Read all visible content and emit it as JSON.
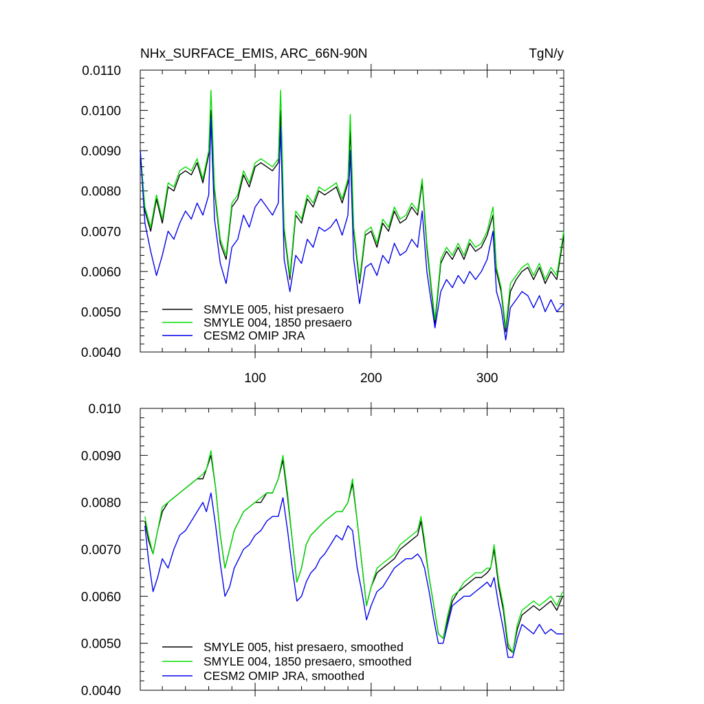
{
  "title": "NHx_SURFACE_EMIS, ARC_66N-90N",
  "units": "TgN/y",
  "colors": {
    "black": "#000000",
    "green": "#00dd00",
    "blue": "#0000ee"
  },
  "chart_data": [
    {
      "type": "line",
      "xlim": [
        1,
        366
      ],
      "ylim": [
        0.004,
        0.011
      ],
      "yticks": [
        "0.0040",
        "0.0050",
        "0.0060",
        "0.0070",
        "0.0080",
        "0.0090",
        "0.0100",
        "0.0110"
      ],
      "xticks": [
        "100",
        "200",
        "300"
      ],
      "legend": "bottom-left",
      "series": [
        {
          "name": "SMYLE 005, hist presaero",
          "color": "black",
          "x": [
            1,
            5,
            10,
            15,
            20,
            25,
            30,
            35,
            40,
            45,
            50,
            55,
            60,
            62,
            65,
            70,
            75,
            80,
            85,
            90,
            95,
            100,
            105,
            110,
            115,
            120,
            122,
            125,
            130,
            135,
            140,
            145,
            150,
            155,
            160,
            165,
            170,
            175,
            180,
            182,
            185,
            190,
            195,
            200,
            205,
            210,
            215,
            220,
            225,
            230,
            235,
            240,
            244,
            248,
            252,
            255,
            260,
            265,
            270,
            275,
            280,
            285,
            290,
            295,
            300,
            305,
            308,
            312,
            316,
            320,
            325,
            330,
            335,
            340,
            345,
            350,
            355,
            360,
            366
          ],
          "y": [
            0.009,
            0.0075,
            0.007,
            0.0078,
            0.0072,
            0.0081,
            0.008,
            0.0084,
            0.0085,
            0.0084,
            0.0087,
            0.0082,
            0.0089,
            0.01,
            0.008,
            0.0067,
            0.0063,
            0.0076,
            0.0078,
            0.0084,
            0.0081,
            0.0086,
            0.0087,
            0.0086,
            0.0085,
            0.0087,
            0.01,
            0.007,
            0.0058,
            0.0074,
            0.0072,
            0.0078,
            0.0076,
            0.008,
            0.0079,
            0.008,
            0.0081,
            0.0077,
            0.0082,
            0.0095,
            0.007,
            0.0057,
            0.0069,
            0.007,
            0.0066,
            0.0072,
            0.007,
            0.0075,
            0.0072,
            0.0073,
            0.0076,
            0.0074,
            0.0082,
            0.0066,
            0.0055,
            0.0047,
            0.0062,
            0.0065,
            0.0063,
            0.0066,
            0.0063,
            0.0067,
            0.0065,
            0.0066,
            0.0069,
            0.0074,
            0.006,
            0.0055,
            0.0045,
            0.0055,
            0.0058,
            0.006,
            0.0061,
            0.0058,
            0.0061,
            0.0057,
            0.006,
            0.0058,
            0.0069
          ]
        },
        {
          "name": "SMYLE 004, 1850 presaero",
          "color": "green",
          "x": [
            1,
            5,
            10,
            15,
            20,
            25,
            30,
            35,
            40,
            45,
            50,
            55,
            60,
            62,
            65,
            70,
            75,
            80,
            85,
            90,
            95,
            100,
            105,
            110,
            115,
            120,
            122,
            125,
            130,
            135,
            140,
            145,
            150,
            155,
            160,
            165,
            170,
            175,
            180,
            182,
            185,
            190,
            195,
            200,
            205,
            210,
            215,
            220,
            225,
            230,
            235,
            240,
            244,
            248,
            252,
            255,
            260,
            265,
            270,
            275,
            280,
            285,
            290,
            295,
            300,
            305,
            308,
            312,
            316,
            320,
            325,
            330,
            335,
            340,
            345,
            350,
            355,
            360,
            366
          ],
          "y": [
            0.009,
            0.0076,
            0.0071,
            0.0079,
            0.0073,
            0.0082,
            0.0081,
            0.0085,
            0.0086,
            0.0085,
            0.0088,
            0.0083,
            0.009,
            0.0105,
            0.0081,
            0.0068,
            0.0064,
            0.0077,
            0.0079,
            0.0085,
            0.0082,
            0.0087,
            0.0088,
            0.0087,
            0.0086,
            0.0088,
            0.0105,
            0.0071,
            0.0059,
            0.0075,
            0.0073,
            0.0079,
            0.0077,
            0.0081,
            0.008,
            0.0081,
            0.0082,
            0.0078,
            0.0083,
            0.0099,
            0.0071,
            0.0058,
            0.007,
            0.0071,
            0.0067,
            0.0073,
            0.0071,
            0.0076,
            0.0073,
            0.0074,
            0.0077,
            0.0075,
            0.0083,
            0.0067,
            0.0056,
            0.0048,
            0.0063,
            0.0066,
            0.0064,
            0.0067,
            0.0064,
            0.0068,
            0.0066,
            0.0067,
            0.007,
            0.0076,
            0.0061,
            0.0056,
            0.0046,
            0.0057,
            0.0059,
            0.0061,
            0.0062,
            0.0059,
            0.0062,
            0.0058,
            0.0061,
            0.0059,
            0.007
          ]
        },
        {
          "name": "CESM2 OMIP JRA",
          "color": "blue",
          "x": [
            1,
            5,
            10,
            15,
            20,
            25,
            30,
            35,
            40,
            45,
            50,
            55,
            60,
            62,
            65,
            70,
            75,
            80,
            85,
            90,
            95,
            100,
            105,
            110,
            115,
            120,
            122,
            125,
            130,
            135,
            140,
            145,
            150,
            155,
            160,
            165,
            170,
            175,
            180,
            182,
            185,
            190,
            195,
            200,
            205,
            210,
            215,
            220,
            225,
            230,
            235,
            240,
            244,
            248,
            252,
            255,
            260,
            265,
            270,
            275,
            280,
            285,
            290,
            295,
            300,
            305,
            308,
            312,
            316,
            320,
            325,
            330,
            335,
            340,
            345,
            350,
            355,
            360,
            366
          ],
          "y": [
            0.009,
            0.0072,
            0.0065,
            0.0059,
            0.0064,
            0.007,
            0.0068,
            0.0072,
            0.0075,
            0.0073,
            0.0077,
            0.0074,
            0.0079,
            0.0098,
            0.0073,
            0.0062,
            0.0057,
            0.0066,
            0.0068,
            0.0074,
            0.0071,
            0.0076,
            0.0078,
            0.0076,
            0.0074,
            0.0077,
            0.0096,
            0.0063,
            0.0055,
            0.0064,
            0.0062,
            0.0068,
            0.0066,
            0.0071,
            0.007,
            0.0071,
            0.0073,
            0.0069,
            0.0074,
            0.009,
            0.0063,
            0.0052,
            0.0061,
            0.0062,
            0.0059,
            0.0064,
            0.0062,
            0.0067,
            0.0064,
            0.0065,
            0.0068,
            0.0066,
            0.0075,
            0.006,
            0.0052,
            0.0046,
            0.0055,
            0.0058,
            0.0056,
            0.0059,
            0.0057,
            0.006,
            0.0058,
            0.006,
            0.0063,
            0.007,
            0.0055,
            0.0051,
            0.0043,
            0.0051,
            0.0053,
            0.0055,
            0.0054,
            0.0051,
            0.0054,
            0.005,
            0.0053,
            0.005,
            0.0052
          ]
        }
      ]
    },
    {
      "type": "line",
      "xlim": [
        1,
        366
      ],
      "ylim": [
        0.004,
        0.01
      ],
      "yticks": [
        "0.0040",
        "0.0050",
        "0.0060",
        "0.0070",
        "0.0080",
        "0.0090",
        "0.010"
      ],
      "xticks": [],
      "legend": "bottom-left",
      "series": [
        {
          "name": "SMYLE 005, hist presaero, smoothed",
          "color": "black",
          "x": [
            5,
            8,
            12,
            16,
            20,
            25,
            30,
            35,
            40,
            45,
            50,
            55,
            58,
            62,
            66,
            70,
            74,
            78,
            82,
            86,
            90,
            95,
            100,
            105,
            110,
            115,
            120,
            124,
            128,
            132,
            136,
            140,
            144,
            148,
            152,
            156,
            160,
            165,
            170,
            175,
            180,
            184,
            188,
            192,
            196,
            200,
            205,
            210,
            215,
            220,
            225,
            230,
            235,
            240,
            243,
            246,
            250,
            254,
            258,
            262,
            266,
            270,
            275,
            280,
            285,
            290,
            295,
            300,
            303,
            306,
            310,
            314,
            318,
            322,
            326,
            330,
            335,
            340,
            345,
            350,
            355,
            360,
            365
          ],
          "y": [
            0.0076,
            0.0072,
            0.0069,
            0.0074,
            0.0078,
            0.008,
            0.0081,
            0.0082,
            0.0083,
            0.0084,
            0.0085,
            0.0085,
            0.0087,
            0.009,
            0.0083,
            0.0073,
            0.0066,
            0.007,
            0.0074,
            0.0076,
            0.0078,
            0.0079,
            0.008,
            0.008,
            0.0082,
            0.0082,
            0.0085,
            0.0089,
            0.0081,
            0.0072,
            0.0063,
            0.0066,
            0.0071,
            0.0073,
            0.0074,
            0.0075,
            0.0076,
            0.0077,
            0.0078,
            0.0078,
            0.008,
            0.0084,
            0.0076,
            0.0067,
            0.0058,
            0.0062,
            0.0065,
            0.0066,
            0.0067,
            0.0068,
            0.007,
            0.0071,
            0.0072,
            0.0073,
            0.0076,
            0.0071,
            0.0064,
            0.0058,
            0.0052,
            0.0051,
            0.0055,
            0.0059,
            0.0061,
            0.0062,
            0.0063,
            0.0064,
            0.0064,
            0.0065,
            0.0066,
            0.007,
            0.0062,
            0.0057,
            0.0049,
            0.0048,
            0.0053,
            0.0056,
            0.0057,
            0.0058,
            0.0057,
            0.0058,
            0.0059,
            0.0057,
            0.006
          ]
        },
        {
          "name": "SMYLE 004, 1850 presaero, smoothed",
          "color": "green",
          "x": [
            5,
            8,
            12,
            16,
            20,
            25,
            30,
            35,
            40,
            45,
            50,
            55,
            58,
            62,
            66,
            70,
            74,
            78,
            82,
            86,
            90,
            95,
            100,
            105,
            110,
            115,
            120,
            124,
            128,
            132,
            136,
            140,
            144,
            148,
            152,
            156,
            160,
            165,
            170,
            175,
            180,
            184,
            188,
            192,
            196,
            200,
            205,
            210,
            215,
            220,
            225,
            230,
            235,
            240,
            243,
            246,
            250,
            254,
            258,
            262,
            266,
            270,
            275,
            280,
            285,
            290,
            295,
            300,
            303,
            306,
            310,
            314,
            318,
            322,
            326,
            330,
            335,
            340,
            345,
            350,
            355,
            360,
            365
          ],
          "y": [
            0.0077,
            0.0073,
            0.0069,
            0.0074,
            0.0079,
            0.008,
            0.0081,
            0.0082,
            0.0083,
            0.0084,
            0.0085,
            0.0086,
            0.0087,
            0.0091,
            0.0083,
            0.0073,
            0.0066,
            0.007,
            0.0074,
            0.0076,
            0.0078,
            0.0079,
            0.008,
            0.0081,
            0.0082,
            0.0082,
            0.0085,
            0.009,
            0.0082,
            0.0072,
            0.0063,
            0.0066,
            0.0071,
            0.0073,
            0.0074,
            0.0075,
            0.0076,
            0.0077,
            0.0078,
            0.0078,
            0.008,
            0.0085,
            0.0076,
            0.0067,
            0.0058,
            0.0062,
            0.0066,
            0.0067,
            0.0068,
            0.0069,
            0.0071,
            0.0072,
            0.0073,
            0.0074,
            0.0077,
            0.0072,
            0.0064,
            0.0058,
            0.0052,
            0.0051,
            0.0056,
            0.006,
            0.0061,
            0.0063,
            0.0064,
            0.0065,
            0.0065,
            0.0066,
            0.0066,
            0.0071,
            0.0063,
            0.0058,
            0.005,
            0.0048,
            0.0054,
            0.0057,
            0.0058,
            0.0059,
            0.0058,
            0.0059,
            0.006,
            0.0058,
            0.0061
          ]
        },
        {
          "name": "CESM2 OMIP JRA, smoothed",
          "color": "blue",
          "x": [
            5,
            8,
            12,
            16,
            20,
            25,
            30,
            35,
            40,
            45,
            50,
            55,
            58,
            62,
            66,
            70,
            74,
            78,
            82,
            86,
            90,
            95,
            100,
            105,
            110,
            115,
            120,
            124,
            128,
            132,
            136,
            140,
            144,
            148,
            152,
            156,
            160,
            165,
            170,
            175,
            180,
            184,
            188,
            192,
            196,
            200,
            205,
            210,
            215,
            220,
            225,
            230,
            235,
            240,
            243,
            246,
            250,
            254,
            258,
            262,
            266,
            270,
            275,
            280,
            285,
            290,
            295,
            300,
            303,
            306,
            310,
            314,
            318,
            322,
            326,
            330,
            335,
            340,
            345,
            350,
            355,
            360,
            365
          ],
          "y": [
            0.0075,
            0.0068,
            0.0061,
            0.0064,
            0.0068,
            0.0066,
            0.007,
            0.0073,
            0.0074,
            0.0076,
            0.0078,
            0.008,
            0.0078,
            0.0082,
            0.0075,
            0.0067,
            0.006,
            0.0062,
            0.0066,
            0.0068,
            0.007,
            0.0071,
            0.0073,
            0.0074,
            0.0076,
            0.0077,
            0.0077,
            0.0081,
            0.0074,
            0.0066,
            0.0059,
            0.006,
            0.0063,
            0.0065,
            0.0066,
            0.0068,
            0.0069,
            0.0071,
            0.0073,
            0.0072,
            0.0075,
            0.0074,
            0.0066,
            0.0061,
            0.0055,
            0.0058,
            0.0061,
            0.0062,
            0.0064,
            0.0066,
            0.0067,
            0.0068,
            0.0068,
            0.0069,
            0.0068,
            0.0066,
            0.0061,
            0.0055,
            0.005,
            0.005,
            0.0054,
            0.0058,
            0.0059,
            0.006,
            0.006,
            0.0061,
            0.0062,
            0.0063,
            0.0062,
            0.0064,
            0.0058,
            0.0053,
            0.0047,
            0.0047,
            0.0051,
            0.0054,
            0.0053,
            0.0052,
            0.0054,
            0.0052,
            0.0053,
            0.0052,
            0.0052
          ]
        }
      ]
    }
  ]
}
